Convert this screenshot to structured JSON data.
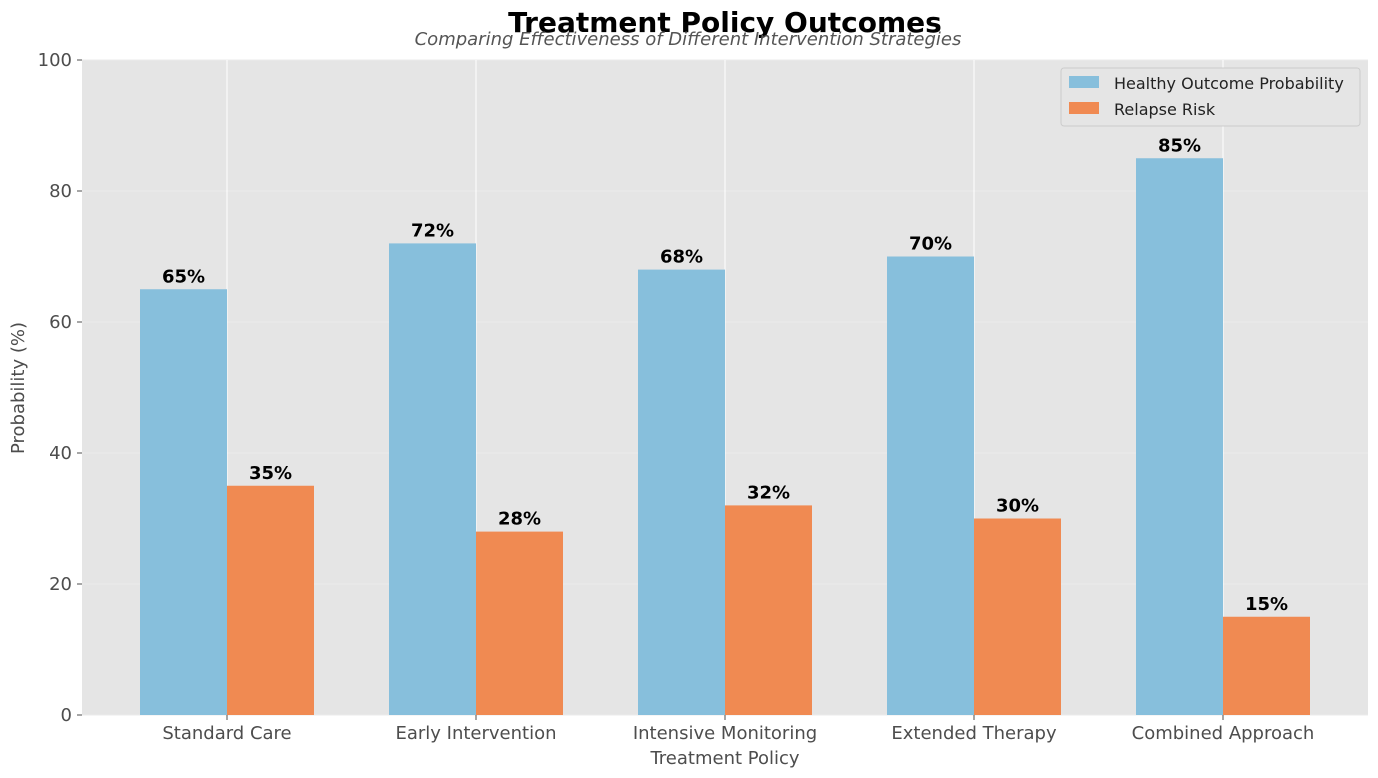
{
  "chart_data": {
    "type": "bar",
    "title": "Treatment Policy Outcomes",
    "subtitle": "Comparing Effectiveness of Different Intervention Strategies",
    "xlabel": "Treatment Policy",
    "ylabel": "Probability (%)",
    "ylim": [
      0,
      100
    ],
    "yticks": [
      0,
      20,
      40,
      60,
      80,
      100
    ],
    "categories": [
      "Standard Care",
      "Early Intervention",
      "Intensive Monitoring",
      "Extended Therapy",
      "Combined Approach"
    ],
    "series": [
      {
        "name": "Healthy Outcome Probability",
        "color": "#87bfdc",
        "values": [
          65,
          72,
          68,
          70,
          85
        ],
        "labels": [
          "65%",
          "72%",
          "68%",
          "70%",
          "85%"
        ]
      },
      {
        "name": "Relapse Risk",
        "color": "#f08a52",
        "values": [
          35,
          28,
          32,
          30,
          15
        ],
        "labels": [
          "35%",
          "28%",
          "32%",
          "30%",
          "15%"
        ]
      }
    ],
    "grid": true,
    "legend_position": "top-right",
    "background": "#e5e5e5"
  }
}
